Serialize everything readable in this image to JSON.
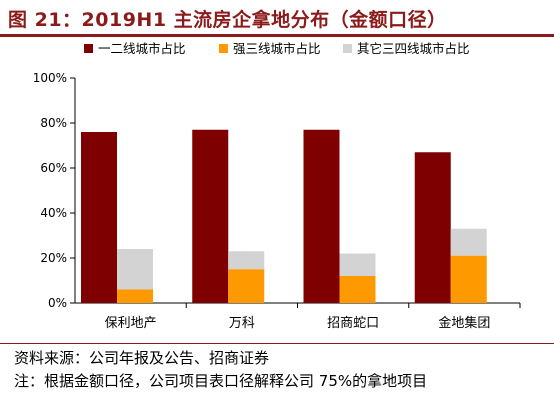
{
  "figure": {
    "title": "图 21：2019H1 主流房企拿地分布（金额口径）",
    "source": "资料来源：公司年报及公告、招商证券",
    "note": "注：根据金额口径，公司项目表口径解释公司 75%的拿地项目"
  },
  "colors": {
    "title": "#8B1A1A",
    "series": [
      "#7F0000",
      "#FF9900",
      "#D3D3D3"
    ]
  },
  "chart_data": {
    "type": "bar",
    "categories": [
      "保利地产",
      "万科",
      "招商蛇口",
      "金地集团"
    ],
    "series": [
      {
        "name": "一二线城市占比",
        "values": [
          76,
          77,
          77,
          67
        ]
      },
      {
        "name": "强三线城市占比",
        "values": [
          6,
          15,
          12,
          21
        ]
      },
      {
        "name": "其它三四线城市占比",
        "values": [
          24,
          23,
          22,
          33
        ]
      }
    ],
    "ylim": [
      0,
      100
    ],
    "yticks": [
      "0%",
      "20%",
      "40%",
      "60%",
      "80%",
      "100%"
    ],
    "ytick_values": [
      0,
      20,
      40,
      60,
      80,
      100
    ],
    "legend_position": "top",
    "grid": false
  }
}
